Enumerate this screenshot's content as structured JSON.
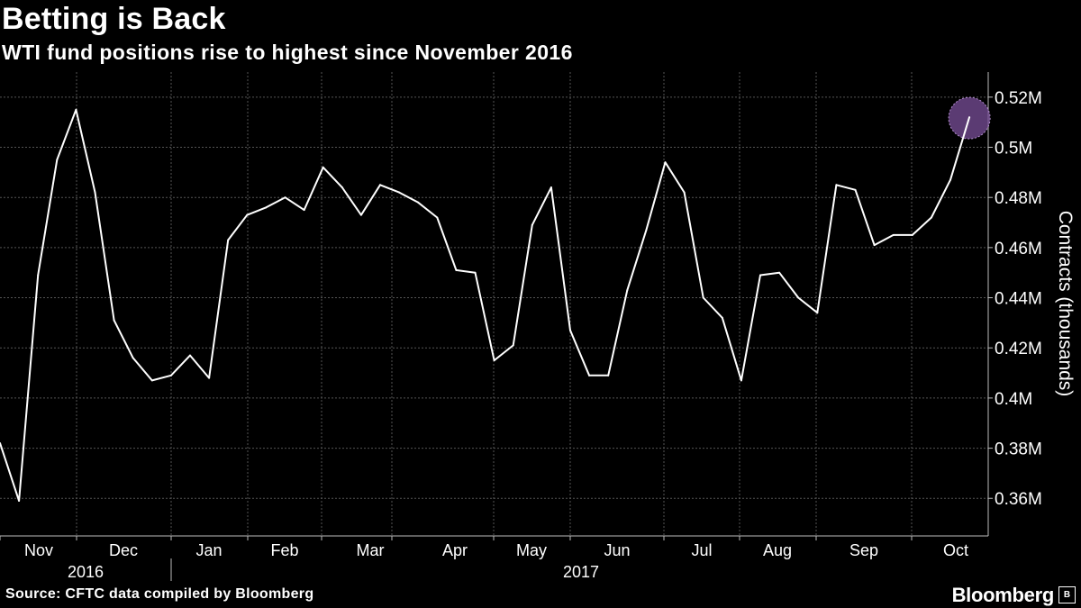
{
  "header": {
    "title": "Betting is Back",
    "subtitle": "WTI fund positions rise to highest since November 2016"
  },
  "footer": {
    "source": "Source: CFTC data compiled by Bloomberg",
    "brand": "Bloomberg",
    "brand_icon": "bloomberg-logo-icon"
  },
  "colors": {
    "background": "#000000",
    "line": "#ffffff",
    "grid": "#555555",
    "highlight": "#7a4f9a"
  },
  "chart_data": {
    "type": "line",
    "title": "Betting is Back",
    "subtitle": "WTI fund positions rise to highest since November 2016",
    "xlabel": "",
    "ylabel": "Contracts (thousands)",
    "ylim": [
      0.345,
      0.53
    ],
    "y_ticks": [
      0.36,
      0.38,
      0.4,
      0.42,
      0.44,
      0.46,
      0.48,
      0.5,
      0.52
    ],
    "y_tick_labels": [
      "0.36M",
      "0.38M",
      "0.4M",
      "0.42M",
      "0.44M",
      "0.46M",
      "0.48M",
      "0.5M",
      "0.52M"
    ],
    "y_axis_position": "right",
    "x_tick_labels": [
      "Nov",
      "Dec",
      "Jan",
      "Feb",
      "Mar",
      "Apr",
      "May",
      "Jun",
      "Jul",
      "Aug",
      "Sep",
      "Oct"
    ],
    "year_labels": [
      "2016",
      "2017"
    ],
    "grid": true,
    "highlight": "latest value circled",
    "series": [
      {
        "values": [
          0.382,
          0.359,
          0.449,
          0.495,
          0.515,
          0.482,
          0.431,
          0.416,
          0.407,
          0.409,
          0.417,
          0.408,
          0.463,
          0.473,
          0.476,
          0.48,
          0.475,
          0.492,
          0.484,
          0.473,
          0.485,
          0.482,
          0.478,
          0.472,
          0.451,
          0.45,
          0.415,
          0.421,
          0.469,
          0.484,
          0.427,
          0.409,
          0.409,
          0.443,
          0.467,
          0.494,
          0.482,
          0.44,
          0.432,
          0.407,
          0.449,
          0.45,
          0.44,
          0.434,
          0.485,
          0.483,
          0.461,
          0.465,
          0.465,
          0.472,
          0.487,
          0.512
        ]
      }
    ]
  }
}
